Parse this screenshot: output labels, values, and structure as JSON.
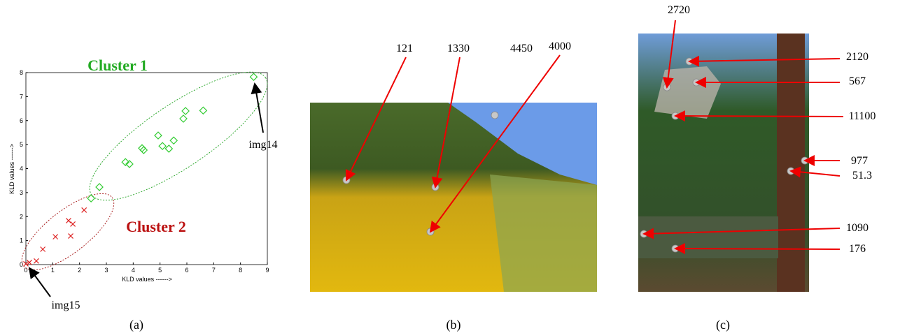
{
  "chart_data": {
    "type": "scatter",
    "xlabel": "KLD values ------>",
    "ylabel": "KLD values ------>",
    "xlim": [
      0,
      9
    ],
    "ylim": [
      0,
      8
    ],
    "xticks": [
      0,
      1,
      2,
      3,
      4,
      5,
      6,
      7,
      8,
      9
    ],
    "yticks": [
      0,
      1,
      2,
      3,
      4,
      5,
      6,
      7,
      8
    ],
    "annotations": [
      "Cluster 1",
      "Cluster 2",
      "img14",
      "img15"
    ],
    "caption": "(a)",
    "series": [
      {
        "marker": "diamond",
        "color": "#33cc33",
        "x": [
          2.43,
          2.74,
          3.71,
          3.86,
          4.33,
          4.39,
          4.93,
          5.09,
          5.33,
          5.51,
          5.87,
          5.95,
          6.61,
          8.49
        ],
        "values": [
          2.76,
          3.23,
          4.27,
          4.19,
          4.85,
          4.77,
          5.38,
          4.94,
          4.83,
          5.17,
          6.08,
          6.4,
          6.42,
          7.82
        ]
      },
      {
        "marker": "cross",
        "color": "#dd2222",
        "x": [
          0.0,
          0.13,
          0.39,
          0.63,
          1.1,
          1.59,
          1.67,
          1.75,
          2.17
        ],
        "values": [
          0.03,
          0.09,
          0.15,
          0.64,
          1.16,
          1.83,
          1.19,
          1.69,
          2.27
        ]
      }
    ]
  },
  "panels": [
    {
      "caption": "(b)",
      "labels": [
        "121",
        "1330",
        "4450",
        "4000"
      ]
    },
    {
      "caption": "(c)",
      "labels": [
        "2720",
        "2120",
        "567",
        "11100",
        "977",
        "51.3",
        "1090",
        "176"
      ]
    }
  ]
}
